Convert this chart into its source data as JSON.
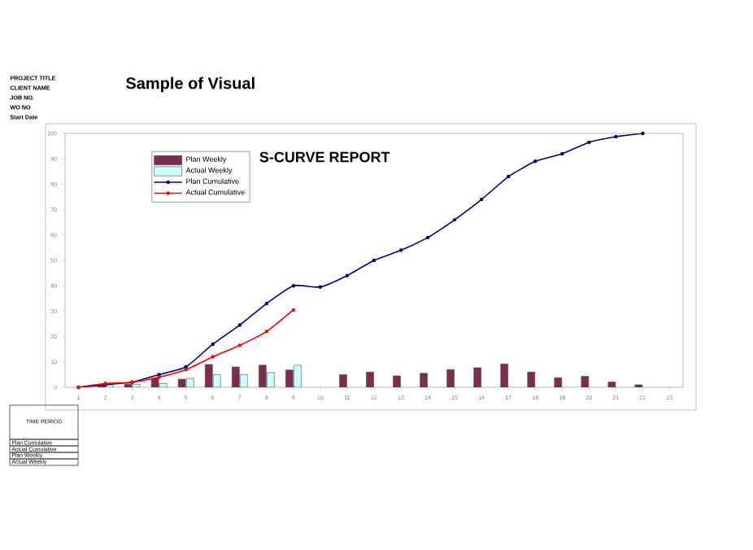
{
  "chart_data": {
    "type": "bar",
    "title": "Sample of Visual",
    "subtitle": "S-CURVE REPORT",
    "categories": [
      "1",
      "2",
      "3",
      "4",
      "5",
      "6",
      "7",
      "8",
      "9",
      "10",
      "11",
      "12",
      "13",
      "14",
      "15",
      "16",
      "17",
      "18",
      "19",
      "20",
      "21",
      "22",
      "23"
    ],
    "series": [
      {
        "name": "Plan Weekly",
        "color": "#7b2c4f",
        "values": [
          null,
          1,
          1.2,
          3.5,
          3.2,
          9,
          8,
          8.7,
          6.8,
          null,
          5,
          6,
          4.5,
          5.5,
          7,
          7.7,
          9.2,
          6,
          3.8,
          4.3,
          2.1,
          1,
          null
        ]
      },
      {
        "name": "Actual Weekly",
        "color": "#ccffff",
        "values": [
          null,
          1,
          1.2,
          1.5,
          3.5,
          5,
          5,
          5.8,
          8.7,
          null,
          null,
          null,
          null,
          null,
          null,
          null,
          null,
          null,
          null,
          null,
          null,
          null,
          null
        ]
      },
      {
        "name": "Plan Cumulative",
        "type": "line",
        "color": "#000080",
        "values": [
          0,
          1,
          2,
          5,
          8,
          17,
          24.5,
          33,
          40,
          39.5,
          44,
          50,
          54,
          59,
          66,
          74,
          83,
          89,
          92,
          96.5,
          98.7,
          100,
          null
        ]
      },
      {
        "name": "Actual Cumulative",
        "type": "line",
        "color": "#ff0000",
        "values": [
          0,
          1.5,
          2,
          4,
          7,
          12,
          16.5,
          22,
          30.5,
          null,
          null,
          null,
          null,
          null,
          null,
          null,
          null,
          null,
          null,
          null,
          null,
          null,
          null
        ]
      }
    ],
    "ylim": [
      0,
      100
    ],
    "yticks": [
      0,
      10,
      20,
      30,
      40,
      50,
      60,
      70,
      80,
      90,
      100
    ],
    "marker": "circle",
    "legend": "top left",
    "annotations": [
      "PROJECT TITLE",
      "CLIENT NAME",
      "JOB NO.",
      "WO NO",
      "Start Date",
      "TIME PERIOD",
      "Plan Cumulative",
      "Actual Cumulative",
      "Plan Weekly",
      "Actual Weekly"
    ]
  }
}
